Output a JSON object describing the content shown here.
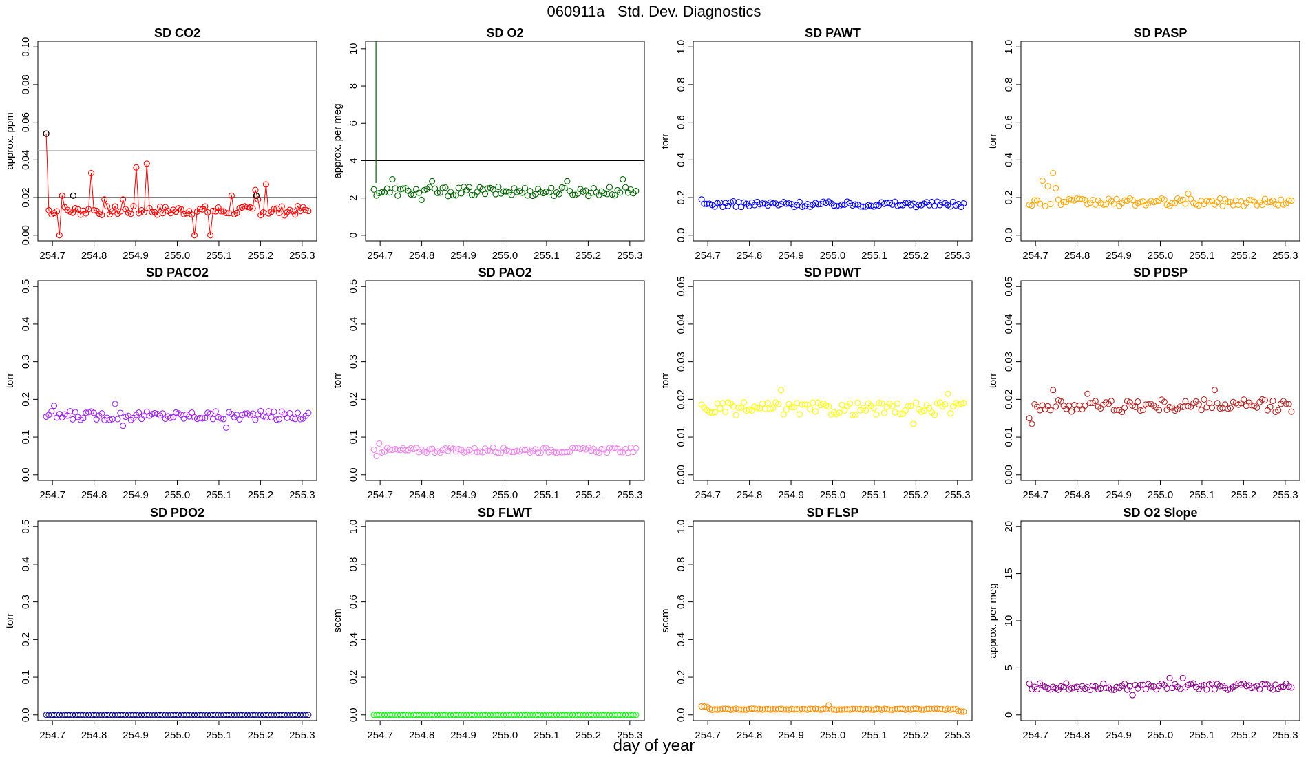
{
  "figure": {
    "title": "060911a   Std. Dev. Diagnostics",
    "xlabel": "day of year"
  },
  "chart_data": [
    {
      "type": "scatter",
      "title": "SD CO2",
      "ylabel": "approx. ppm",
      "color": "#ff0000",
      "line": true,
      "ylim": [
        -0.003,
        0.103
      ],
      "yticks": [
        0.0,
        0.02,
        0.04,
        0.06,
        0.08,
        0.1
      ],
      "ytick_labels": [
        "0.00",
        "0.02",
        "0.04",
        "0.06",
        "0.08",
        "0.10"
      ],
      "hlines": [
        {
          "y": 0.02,
          "color": "#000000"
        },
        {
          "y": 0.045,
          "color": "#bbbbbb"
        }
      ],
      "highlight_points": [
        {
          "x": 254.685,
          "y": 0.054
        },
        {
          "x": 254.75,
          "y": 0.021
        },
        {
          "x": 255.19,
          "y": 0.021
        }
      ],
      "x": {
        "start": 254.685,
        "end": 255.315,
        "n": 100
      },
      "baseline": 0.013,
      "noise": 0.0025,
      "spikes": [
        {
          "i": 0,
          "y": 0.054
        },
        {
          "i": 5,
          "y": 0.0
        },
        {
          "i": 6,
          "y": 0.021
        },
        {
          "i": 17,
          "y": 0.033
        },
        {
          "i": 22,
          "y": 0.019
        },
        {
          "i": 29,
          "y": 0.019
        },
        {
          "i": 34,
          "y": 0.036
        },
        {
          "i": 38,
          "y": 0.038
        },
        {
          "i": 56,
          "y": 0.0
        },
        {
          "i": 62,
          "y": 0.0
        },
        {
          "i": 70,
          "y": 0.021
        },
        {
          "i": 79,
          "y": 0.024
        },
        {
          "i": 83,
          "y": 0.027
        },
        {
          "i": 80,
          "y": 0.019
        }
      ]
    },
    {
      "type": "scatter",
      "title": "SD O2",
      "ylabel": "approx. per meg",
      "color": "#006400",
      "line": false,
      "ylim": [
        -0.3,
        10.4
      ],
      "yticks": [
        0,
        2,
        4,
        6,
        8,
        10
      ],
      "ytick_labels": [
        "0",
        "2",
        "4",
        "6",
        "8",
        "10"
      ],
      "hlines": [
        {
          "y": 4,
          "color": "#000000"
        }
      ],
      "vlines": [
        {
          "x": 254.69,
          "y_from": 2.8,
          "y_to": 10.4,
          "color": "#006400"
        }
      ],
      "x": {
        "start": 254.685,
        "end": 255.315,
        "n": 100
      },
      "baseline": 2.35,
      "noise": 0.25,
      "spikes": [
        {
          "i": 7,
          "y": 3.0
        },
        {
          "i": 22,
          "y": 2.9
        },
        {
          "i": 73,
          "y": 2.9
        },
        {
          "i": 94,
          "y": 3.0
        },
        {
          "i": 18,
          "y": 1.9
        }
      ]
    },
    {
      "type": "scatter",
      "title": "SD PAWT",
      "ylabel": "torr",
      "color": "#0000ff",
      "line": false,
      "ylim": [
        -0.03,
        1.03
      ],
      "yticks": [
        0.0,
        0.2,
        0.4,
        0.6,
        0.8,
        1.0
      ],
      "ytick_labels": [
        "0.0",
        "0.2",
        "0.4",
        "0.6",
        "0.8",
        "1.0"
      ],
      "x": {
        "start": 254.685,
        "end": 255.315,
        "n": 100
      },
      "baseline": 0.165,
      "noise": 0.015,
      "spikes": [
        {
          "i": 0,
          "y": 0.19
        }
      ]
    },
    {
      "type": "scatter",
      "title": "SD PASP",
      "ylabel": "torr",
      "color": "#ffa500",
      "line": false,
      "ylim": [
        -0.03,
        1.03
      ],
      "yticks": [
        0.0,
        0.2,
        0.4,
        0.6,
        0.8,
        1.0
      ],
      "ytick_labels": [
        "0.0",
        "0.2",
        "0.4",
        "0.6",
        "0.8",
        "1.0"
      ],
      "x": {
        "start": 254.685,
        "end": 255.315,
        "n": 100
      },
      "baseline": 0.175,
      "noise": 0.02,
      "spikes": [
        {
          "i": 5,
          "y": 0.29
        },
        {
          "i": 7,
          "y": 0.26
        },
        {
          "i": 9,
          "y": 0.33
        },
        {
          "i": 10,
          "y": 0.25
        },
        {
          "i": 60,
          "y": 0.22
        }
      ]
    },
    {
      "type": "scatter",
      "title": "SD PACO2",
      "ylabel": "torr",
      "color": "#a020f0",
      "line": false,
      "ylim": [
        -0.015,
        0.515
      ],
      "yticks": [
        0.0,
        0.1,
        0.2,
        0.3,
        0.4,
        0.5
      ],
      "ytick_labels": [
        "0.0",
        "0.1",
        "0.2",
        "0.3",
        "0.4",
        "0.5"
      ],
      "x": {
        "start": 254.685,
        "end": 255.315,
        "n": 100
      },
      "baseline": 0.157,
      "noise": 0.012,
      "spikes": [
        {
          "i": 3,
          "y": 0.183
        },
        {
          "i": 26,
          "y": 0.188
        },
        {
          "i": 29,
          "y": 0.13
        },
        {
          "i": 68,
          "y": 0.125
        }
      ]
    },
    {
      "type": "scatter",
      "title": "SD PAO2",
      "ylabel": "torr",
      "color": "#ee82ee",
      "line": false,
      "ylim": [
        -0.015,
        0.515
      ],
      "yticks": [
        0.0,
        0.1,
        0.2,
        0.3,
        0.4,
        0.5
      ],
      "ytick_labels": [
        "0.0",
        "0.1",
        "0.2",
        "0.3",
        "0.4",
        "0.5"
      ],
      "x": {
        "start": 254.685,
        "end": 255.315,
        "n": 100
      },
      "baseline": 0.065,
      "noise": 0.007,
      "spikes": [
        {
          "i": 2,
          "y": 0.083
        },
        {
          "i": 1,
          "y": 0.05
        }
      ]
    },
    {
      "type": "scatter",
      "title": "SD PDWT",
      "ylabel": "torr",
      "color": "#ffff00",
      "line": false,
      "ylim": [
        -0.0015,
        0.0515
      ],
      "yticks": [
        0.0,
        0.01,
        0.02,
        0.03,
        0.04,
        0.05
      ],
      "ytick_labels": [
        "0.00",
        "0.01",
        "0.02",
        "0.03",
        "0.04",
        "0.05"
      ],
      "x": {
        "start": 254.685,
        "end": 255.315,
        "n": 100
      },
      "baseline": 0.0175,
      "noise": 0.0017,
      "spikes": [
        {
          "i": 30,
          "y": 0.0225
        },
        {
          "i": 93,
          "y": 0.0215
        },
        {
          "i": 80,
          "y": 0.0135
        }
      ]
    },
    {
      "type": "scatter",
      "title": "SD PDSP",
      "ylabel": "torr",
      "color": "#b22222",
      "line": false,
      "ylim": [
        -0.0015,
        0.0515
      ],
      "yticks": [
        0.0,
        0.01,
        0.02,
        0.03,
        0.04,
        0.05
      ],
      "ytick_labels": [
        "0.00",
        "0.01",
        "0.02",
        "0.03",
        "0.04",
        "0.05"
      ],
      "x": {
        "start": 254.685,
        "end": 255.315,
        "n": 100
      },
      "baseline": 0.0183,
      "noise": 0.0017,
      "spikes": [
        {
          "i": 0,
          "y": 0.015
        },
        {
          "i": 1,
          "y": 0.0135
        },
        {
          "i": 9,
          "y": 0.0225
        },
        {
          "i": 22,
          "y": 0.0215
        },
        {
          "i": 70,
          "y": 0.0225
        }
      ]
    },
    {
      "type": "scatter",
      "title": "SD PDO2",
      "ylabel": "torr",
      "color": "#00008b",
      "line": false,
      "ylim": [
        -0.015,
        0.515
      ],
      "yticks": [
        0.0,
        0.1,
        0.2,
        0.3,
        0.4,
        0.5
      ],
      "ytick_labels": [
        "0.0",
        "0.1",
        "0.2",
        "0.3",
        "0.4",
        "0.5"
      ],
      "x": {
        "start": 254.685,
        "end": 255.315,
        "n": 100
      },
      "baseline": 0.0,
      "noise": 0.0,
      "spikes": []
    },
    {
      "type": "scatter",
      "title": "SD FLWT",
      "ylabel": "sccm",
      "color": "#00ff00",
      "line": false,
      "ylim": [
        -0.03,
        1.03
      ],
      "yticks": [
        0.0,
        0.2,
        0.4,
        0.6,
        0.8,
        1.0
      ],
      "ytick_labels": [
        "0.0",
        "0.2",
        "0.4",
        "0.6",
        "0.8",
        "1.0"
      ],
      "x": {
        "start": 254.685,
        "end": 255.315,
        "n": 100
      },
      "baseline": 0.0,
      "noise": 0.0,
      "spikes": []
    },
    {
      "type": "scatter",
      "title": "SD FLSP",
      "ylabel": "sccm",
      "color": "#ff8c00",
      "line": false,
      "ylim": [
        -0.03,
        1.03
      ],
      "yticks": [
        0.0,
        0.2,
        0.4,
        0.6,
        0.8,
        1.0
      ],
      "ytick_labels": [
        "0.0",
        "0.2",
        "0.4",
        "0.6",
        "0.8",
        "1.0"
      ],
      "x": {
        "start": 254.685,
        "end": 255.315,
        "n": 100
      },
      "baseline": 0.03,
      "noise": 0.003,
      "spikes": [
        {
          "i": 0,
          "y": 0.045
        },
        {
          "i": 1,
          "y": 0.045
        },
        {
          "i": 2,
          "y": 0.043
        },
        {
          "i": 48,
          "y": 0.05
        },
        {
          "i": 97,
          "y": 0.02
        },
        {
          "i": 98,
          "y": 0.018
        },
        {
          "i": 99,
          "y": 0.017
        }
      ]
    },
    {
      "type": "scatter",
      "title": "SD O2 Slope",
      "ylabel": "approx. per meg",
      "color": "#8b008b",
      "line": false,
      "ylim": [
        -0.6,
        20.6
      ],
      "yticks": [
        0,
        5,
        10,
        15,
        20
      ],
      "ytick_labels": [
        "0",
        "5",
        "10",
        "15",
        "20"
      ],
      "x": {
        "start": 254.685,
        "end": 255.315,
        "n": 100
      },
      "baseline": 3.0,
      "noise": 0.35,
      "spikes": [
        {
          "i": 53,
          "y": 3.9
        },
        {
          "i": 39,
          "y": 2.1
        },
        {
          "i": 58,
          "y": 3.9
        }
      ]
    }
  ],
  "shared_xaxis": {
    "xlim": [
      254.665,
      255.335
    ],
    "xticks": [
      254.7,
      254.8,
      254.9,
      255.0,
      255.1,
      255.2,
      255.3
    ],
    "xtick_labels": [
      "254.7",
      "254.8",
      "254.9",
      "255.0",
      "255.1",
      "255.2",
      "255.3"
    ]
  }
}
